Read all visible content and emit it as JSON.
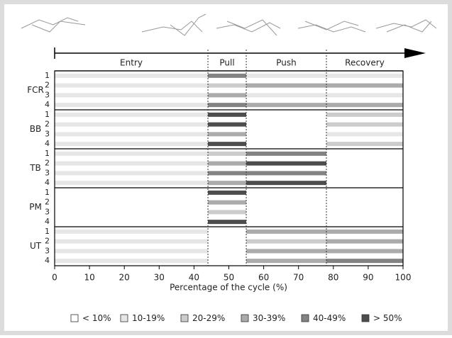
{
  "chart_data": {
    "type": "activation-bands",
    "xlabel": "Percentage of the cycle (%)",
    "xlim": [
      0,
      100
    ],
    "xticks": [
      0,
      10,
      20,
      30,
      40,
      50,
      60,
      70,
      80,
      90,
      100
    ],
    "phases": [
      {
        "name": "Entry",
        "start": 0,
        "end": 44
      },
      {
        "name": "Pull",
        "start": 44,
        "end": 55
      },
      {
        "name": "Push",
        "start": 55,
        "end": 78
      },
      {
        "name": "Recovery",
        "start": 78,
        "end": 100
      }
    ],
    "groups": [
      {
        "name": "FCR",
        "rows": [
          {
            "label": "1",
            "levels": [
              1,
              4,
              1,
              1
            ]
          },
          {
            "label": "2",
            "levels": [
              1,
              2,
              3,
              3
            ]
          },
          {
            "label": "3",
            "levels": [
              1,
              3,
              1,
              1
            ]
          },
          {
            "label": "4",
            "levels": [
              1,
              4,
              3,
              3
            ]
          }
        ]
      },
      {
        "name": "BB",
        "rows": [
          {
            "label": "1",
            "levels": [
              1,
              5,
              0,
              2
            ]
          },
          {
            "label": "2",
            "levels": [
              1,
              5,
              0,
              2
            ]
          },
          {
            "label": "3",
            "levels": [
              1,
              3,
              0,
              1
            ]
          },
          {
            "label": "4",
            "levels": [
              1,
              5,
              0,
              2
            ]
          }
        ]
      },
      {
        "name": "TB",
        "rows": [
          {
            "label": "1",
            "levels": [
              1,
              2,
              4,
              0
            ]
          },
          {
            "label": "2",
            "levels": [
              1,
              3,
              5,
              0
            ]
          },
          {
            "label": "3",
            "levels": [
              1,
              4,
              4,
              0
            ]
          },
          {
            "label": "4",
            "levels": [
              1,
              3,
              5,
              0
            ]
          }
        ]
      },
      {
        "name": "PM",
        "rows": [
          {
            "label": "1",
            "levels": [
              0,
              5,
              0,
              0
            ]
          },
          {
            "label": "2",
            "levels": [
              0,
              3,
              0,
              0
            ]
          },
          {
            "label": "3",
            "levels": [
              0,
              2,
              0,
              0
            ]
          },
          {
            "label": "4",
            "levels": [
              0,
              5,
              0,
              0
            ]
          }
        ]
      },
      {
        "name": "UT",
        "rows": [
          {
            "label": "1",
            "levels": [
              1,
              0,
              3,
              3
            ]
          },
          {
            "label": "2",
            "levels": [
              1,
              0,
              2,
              3
            ]
          },
          {
            "label": "3",
            "levels": [
              1,
              0,
              3,
              3
            ]
          },
          {
            "label": "4",
            "levels": [
              1,
              0,
              3,
              4
            ]
          }
        ]
      }
    ],
    "legend": [
      {
        "label": "< 10%",
        "color": "#ffffff"
      },
      {
        "label": "10-19%",
        "color": "#e6e6e6"
      },
      {
        "label": "20-29%",
        "color": "#cccccc"
      },
      {
        "label": "30-39%",
        "color": "#ababab"
      },
      {
        "label": "40-49%",
        "color": "#838383"
      },
      {
        "label": "> 50%",
        "color": "#4d4d4d"
      }
    ]
  }
}
